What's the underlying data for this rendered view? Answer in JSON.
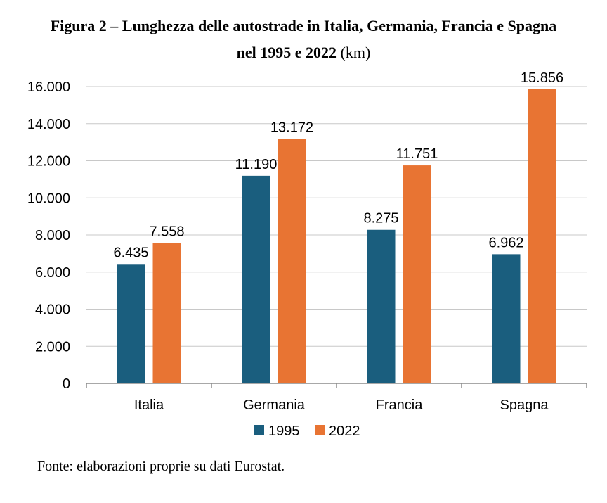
{
  "title": {
    "line1": "Figura 2 – Lunghezza delle autostrade in Italia, Germania, Francia e Spagna",
    "line2_bold": "nel 1995 e 2022",
    "line2_unit": "(km)"
  },
  "source_note": "Fonte: elaborazioni proprie su dati Eurostat.",
  "chart_data": {
    "type": "bar",
    "categories": [
      "Italia",
      "Germania",
      "Francia",
      "Spagna"
    ],
    "series": [
      {
        "name": "1995",
        "color": "#1a5e7e",
        "values": [
          6435,
          11190,
          8275,
          6962
        ],
        "labels": [
          "6.435",
          "11.190",
          "8.275",
          "6.962"
        ]
      },
      {
        "name": "2022",
        "color": "#e87433",
        "values": [
          7558,
          13172,
          11751,
          15856
        ],
        "labels": [
          "7.558",
          "13.172",
          "11.751",
          "15.856"
        ]
      }
    ],
    "ylim": [
      0,
      16000
    ],
    "yticks": [
      0,
      2000,
      4000,
      6000,
      8000,
      10000,
      12000,
      14000,
      16000
    ],
    "ytick_labels": [
      "0",
      "2.000",
      "4.000",
      "6.000",
      "8.000",
      "10.000",
      "12.000",
      "14.000",
      "16.000"
    ],
    "xlabel": "",
    "ylabel": "",
    "grid": true,
    "legend_position": "bottom-center"
  }
}
